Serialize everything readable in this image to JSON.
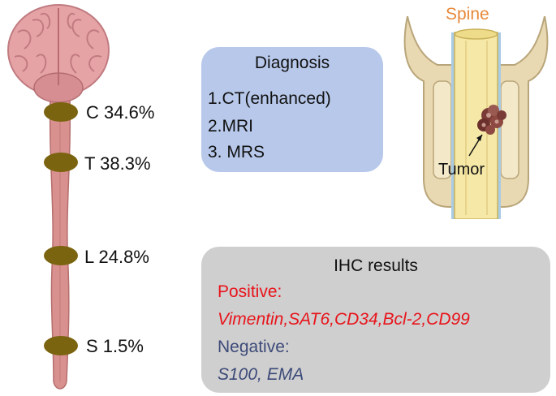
{
  "segments": [
    {
      "label": "C 34.6%"
    },
    {
      "label": "T 38.3%"
    },
    {
      "label": "L 24.8%"
    },
    {
      "label": "S 1.5%"
    }
  ],
  "diagnosis": {
    "title": "Diagnosis",
    "items": [
      "1.CT(enhanced)",
      "2.MRI",
      "3. MRS"
    ]
  },
  "spine_panel": {
    "title": "Spine",
    "tumor_label": "Tumor"
  },
  "ihc": {
    "title": "IHC results",
    "positive_label": "Positive:",
    "positive_markers": "Vimentin,SAT6,CD34,Bcl-2,CD99",
    "negative_label": "Negative:",
    "negative_markers": "S100, EMA"
  },
  "colors": {
    "brain": "#e6a3a6",
    "cord": "#d9918f",
    "marker": "#7a6410",
    "diagnosis_box": "#b7c8ea",
    "ihc_box": "#cfcfcf",
    "positive": "#e8141b",
    "negative": "#3c4a78",
    "spine_title": "#e8893a",
    "bone": "#e9d9b2",
    "canal": "#f6e9a8"
  }
}
